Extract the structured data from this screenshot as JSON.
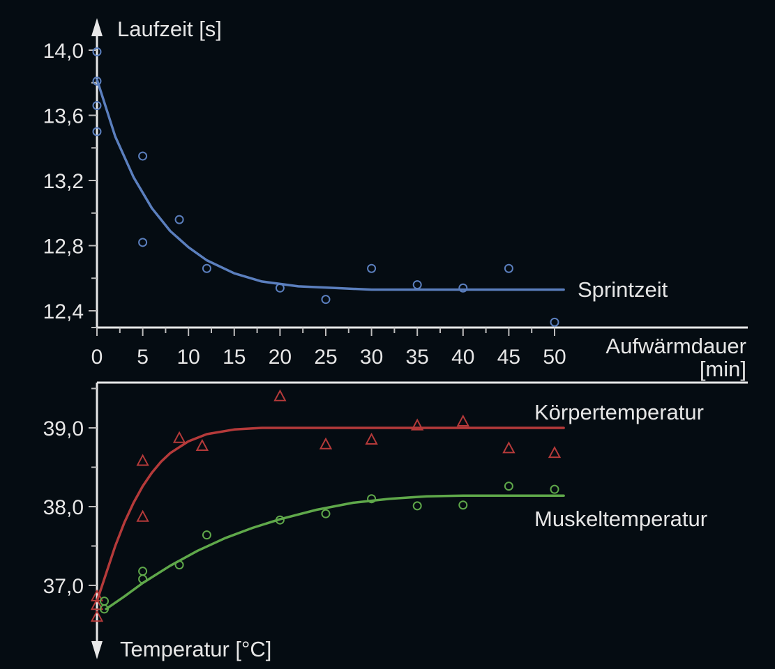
{
  "chart_data": [
    {
      "type": "scatter",
      "ylabel": "Laufzeit [s]",
      "xlabel": "Aufwärmdauer",
      "xlabel_unit": "[min]",
      "xlim": [
        0,
        50
      ],
      "ylim": [
        12.3,
        14.0
      ],
      "x_ticks": [
        0,
        5,
        10,
        15,
        20,
        25,
        30,
        35,
        40,
        45,
        50
      ],
      "y_ticks": [
        {
          "value": 12.4,
          "label": "12,4"
        },
        {
          "value": 12.8,
          "label": "12,8"
        },
        {
          "value": 13.2,
          "label": "13,2"
        },
        {
          "value": 13.6,
          "label": "13,6"
        },
        {
          "value": 14.0,
          "label": "14,0"
        }
      ],
      "grid": false,
      "series": [
        {
          "name": "Sprintzeit",
          "color": "#5b7fbe",
          "marker": "circle",
          "points": [
            {
              "x": 0,
              "y": 13.99
            },
            {
              "x": 0,
              "y": 13.81
            },
            {
              "x": 0,
              "y": 13.66
            },
            {
              "x": 0,
              "y": 13.5
            },
            {
              "x": 5,
              "y": 13.35
            },
            {
              "x": 5,
              "y": 12.82
            },
            {
              "x": 9,
              "y": 12.96
            },
            {
              "x": 12,
              "y": 12.66
            },
            {
              "x": 20,
              "y": 12.54
            },
            {
              "x": 25,
              "y": 12.47
            },
            {
              "x": 30,
              "y": 12.66
            },
            {
              "x": 35,
              "y": 12.56
            },
            {
              "x": 40,
              "y": 12.54
            },
            {
              "x": 45,
              "y": 12.66
            },
            {
              "x": 50,
              "y": 12.33
            }
          ],
          "fit_curve": [
            {
              "x": 0,
              "y": 13.82
            },
            {
              "x": 2,
              "y": 13.47
            },
            {
              "x": 4,
              "y": 13.22
            },
            {
              "x": 6,
              "y": 13.03
            },
            {
              "x": 8,
              "y": 12.89
            },
            {
              "x": 10,
              "y": 12.79
            },
            {
              "x": 12,
              "y": 12.71
            },
            {
              "x": 15,
              "y": 12.63
            },
            {
              "x": 18,
              "y": 12.58
            },
            {
              "x": 22,
              "y": 12.55
            },
            {
              "x": 26,
              "y": 12.54
            },
            {
              "x": 30,
              "y": 12.53
            },
            {
              "x": 40,
              "y": 12.53
            },
            {
              "x": 51,
              "y": 12.53
            }
          ]
        }
      ]
    },
    {
      "type": "scatter",
      "ylabel": "Temperatur [°C]",
      "xlim": [
        0,
        50
      ],
      "ylim": [
        36.6,
        39.5
      ],
      "y_ticks": [
        {
          "value": 37.0,
          "label": "37,0"
        },
        {
          "value": 38.0,
          "label": "38,0"
        },
        {
          "value": 39.0,
          "label": "39,0"
        }
      ],
      "grid": false,
      "series": [
        {
          "name": "Körpertemperatur",
          "color": "#b53a3a",
          "marker": "triangle",
          "points": [
            {
              "x": 0,
              "y": 36.86
            },
            {
              "x": 0,
              "y": 36.75
            },
            {
              "x": 0,
              "y": 36.6
            },
            {
              "x": 5,
              "y": 38.58
            },
            {
              "x": 5,
              "y": 37.87
            },
            {
              "x": 9,
              "y": 38.87
            },
            {
              "x": 11.5,
              "y": 38.77
            },
            {
              "x": 20,
              "y": 39.4
            },
            {
              "x": 25,
              "y": 38.79
            },
            {
              "x": 30,
              "y": 38.85
            },
            {
              "x": 35,
              "y": 39.03
            },
            {
              "x": 40,
              "y": 39.08
            },
            {
              "x": 45,
              "y": 38.74
            },
            {
              "x": 50,
              "y": 38.68
            }
          ],
          "fit_curve": [
            {
              "x": 0,
              "y": 36.8
            },
            {
              "x": 1,
              "y": 37.15
            },
            {
              "x": 2,
              "y": 37.5
            },
            {
              "x": 3,
              "y": 37.8
            },
            {
              "x": 4,
              "y": 38.05
            },
            {
              "x": 5,
              "y": 38.26
            },
            {
              "x": 6,
              "y": 38.43
            },
            {
              "x": 7,
              "y": 38.57
            },
            {
              "x": 8,
              "y": 38.68
            },
            {
              "x": 10,
              "y": 38.83
            },
            {
              "x": 12,
              "y": 38.92
            },
            {
              "x": 15,
              "y": 38.98
            },
            {
              "x": 18,
              "y": 39.0
            },
            {
              "x": 51,
              "y": 39.0
            }
          ]
        },
        {
          "name": "Muskeltemperatur",
          "color": "#5fa84a",
          "marker": "circle",
          "points": [
            {
              "x": 0.8,
              "y": 36.8
            },
            {
              "x": 0.8,
              "y": 36.7
            },
            {
              "x": 5,
              "y": 37.18
            },
            {
              "x": 5,
              "y": 37.08
            },
            {
              "x": 9,
              "y": 37.26
            },
            {
              "x": 12,
              "y": 37.64
            },
            {
              "x": 20,
              "y": 37.83
            },
            {
              "x": 25,
              "y": 37.91
            },
            {
              "x": 30,
              "y": 38.1
            },
            {
              "x": 35,
              "y": 38.01
            },
            {
              "x": 40,
              "y": 38.02
            },
            {
              "x": 45,
              "y": 38.26
            },
            {
              "x": 50,
              "y": 38.22
            }
          ],
          "fit_curve": [
            {
              "x": 1,
              "y": 36.7
            },
            {
              "x": 3,
              "y": 36.86
            },
            {
              "x": 5,
              "y": 37.03
            },
            {
              "x": 8,
              "y": 37.25
            },
            {
              "x": 11,
              "y": 37.44
            },
            {
              "x": 14,
              "y": 37.6
            },
            {
              "x": 17,
              "y": 37.73
            },
            {
              "x": 20,
              "y": 37.84
            },
            {
              "x": 24,
              "y": 37.96
            },
            {
              "x": 28,
              "y": 38.05
            },
            {
              "x": 32,
              "y": 38.1
            },
            {
              "x": 36,
              "y": 38.13
            },
            {
              "x": 40,
              "y": 38.14
            },
            {
              "x": 51,
              "y": 38.14
            }
          ]
        }
      ]
    }
  ]
}
